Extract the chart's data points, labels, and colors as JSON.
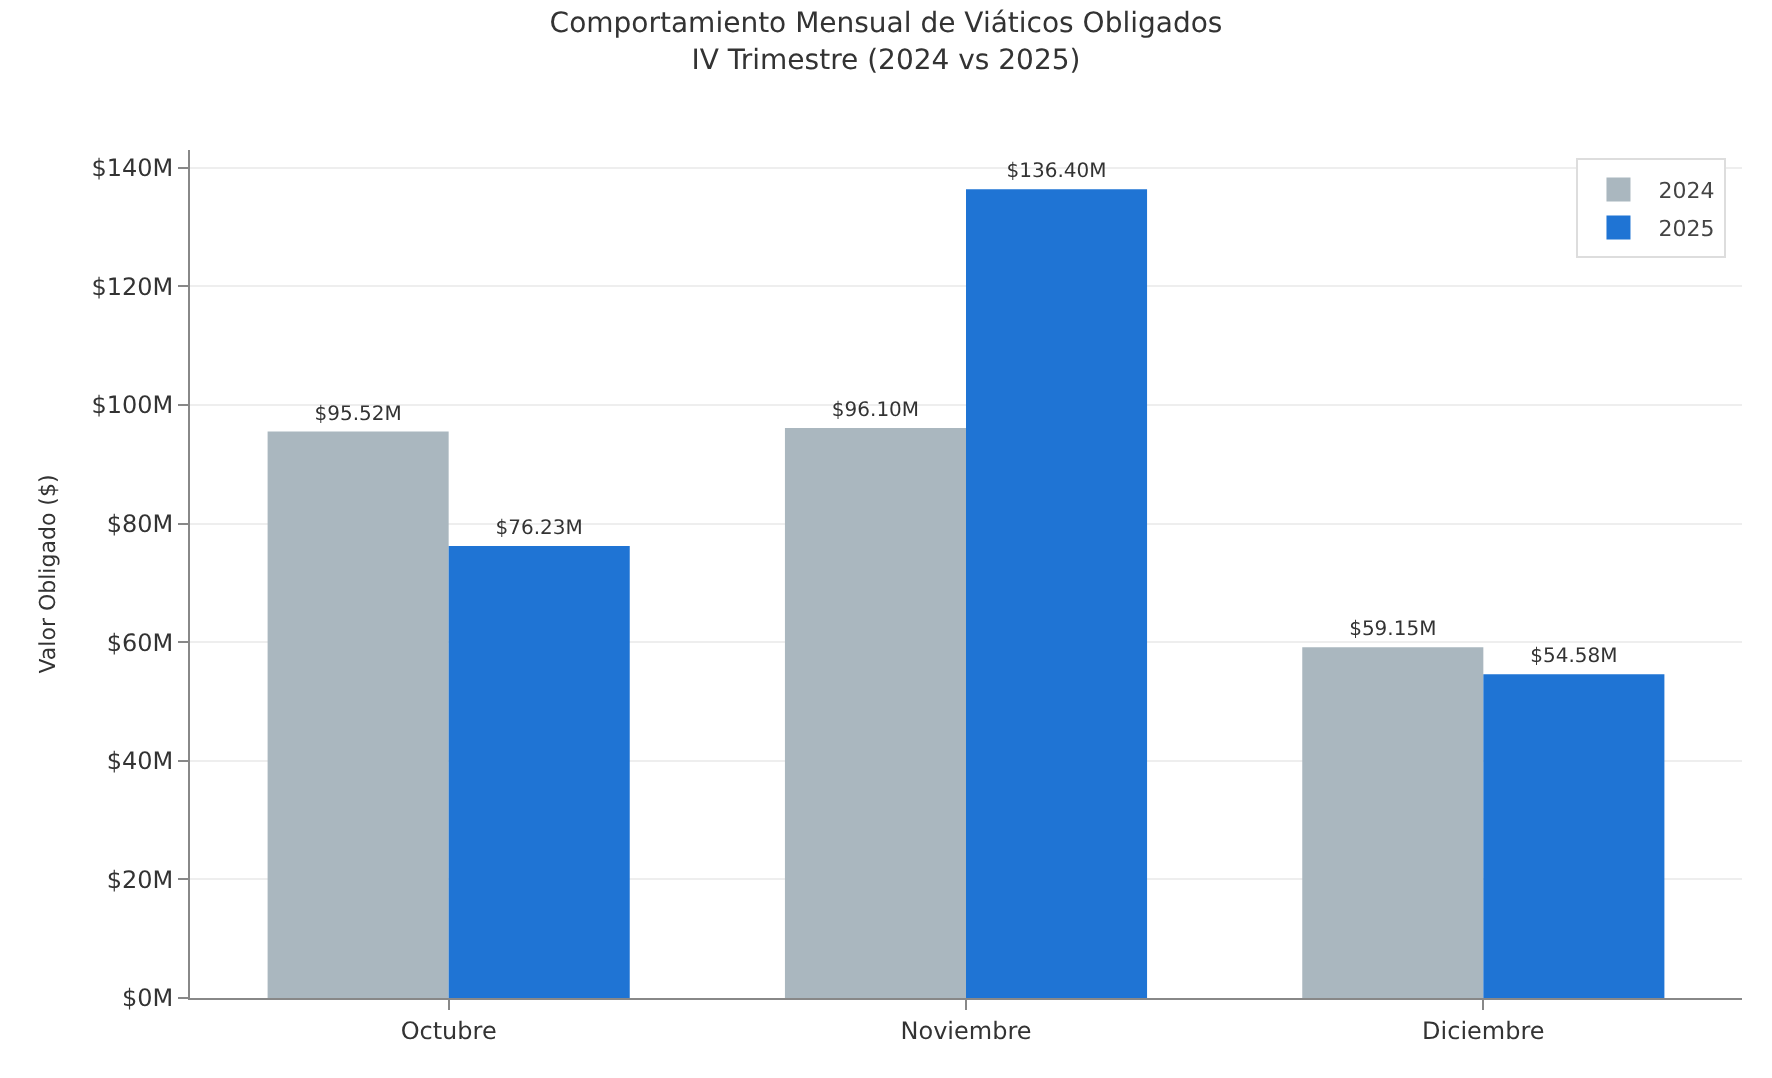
{
  "chart_data": {
    "type": "bar",
    "title": "Comportamiento Mensual de Viáticos Obligados",
    "subtitle": "IV Trimestre (2024 vs 2025)",
    "ylabel": "Valor Obligado ($)",
    "categories": [
      "Octubre",
      "Noviembre",
      "Diciembre"
    ],
    "series": [
      {
        "name": "2024",
        "color": "#aab7bf",
        "values": [
          95.52,
          96.1,
          59.15
        ],
        "value_labels": [
          "$95.52M",
          "$96.10M",
          "$59.15M"
        ]
      },
      {
        "name": "2025",
        "color": "#1f74d4",
        "values": [
          76.23,
          136.4,
          54.58
        ],
        "value_labels": [
          "$76.23M",
          "$136.40M",
          "$54.58M"
        ]
      }
    ],
    "ylim": [
      0,
      143
    ],
    "yticks": [
      {
        "value": 0,
        "label": "$0M"
      },
      {
        "value": 20,
        "label": "$20M"
      },
      {
        "value": 40,
        "label": "$40M"
      },
      {
        "value": 60,
        "label": "$60M"
      },
      {
        "value": 80,
        "label": "$80M"
      },
      {
        "value": 100,
        "label": "$100M"
      },
      {
        "value": 120,
        "label": "$120M"
      },
      {
        "value": 140,
        "label": "$140M"
      }
    ],
    "grid": "y",
    "legend": "top right"
  }
}
